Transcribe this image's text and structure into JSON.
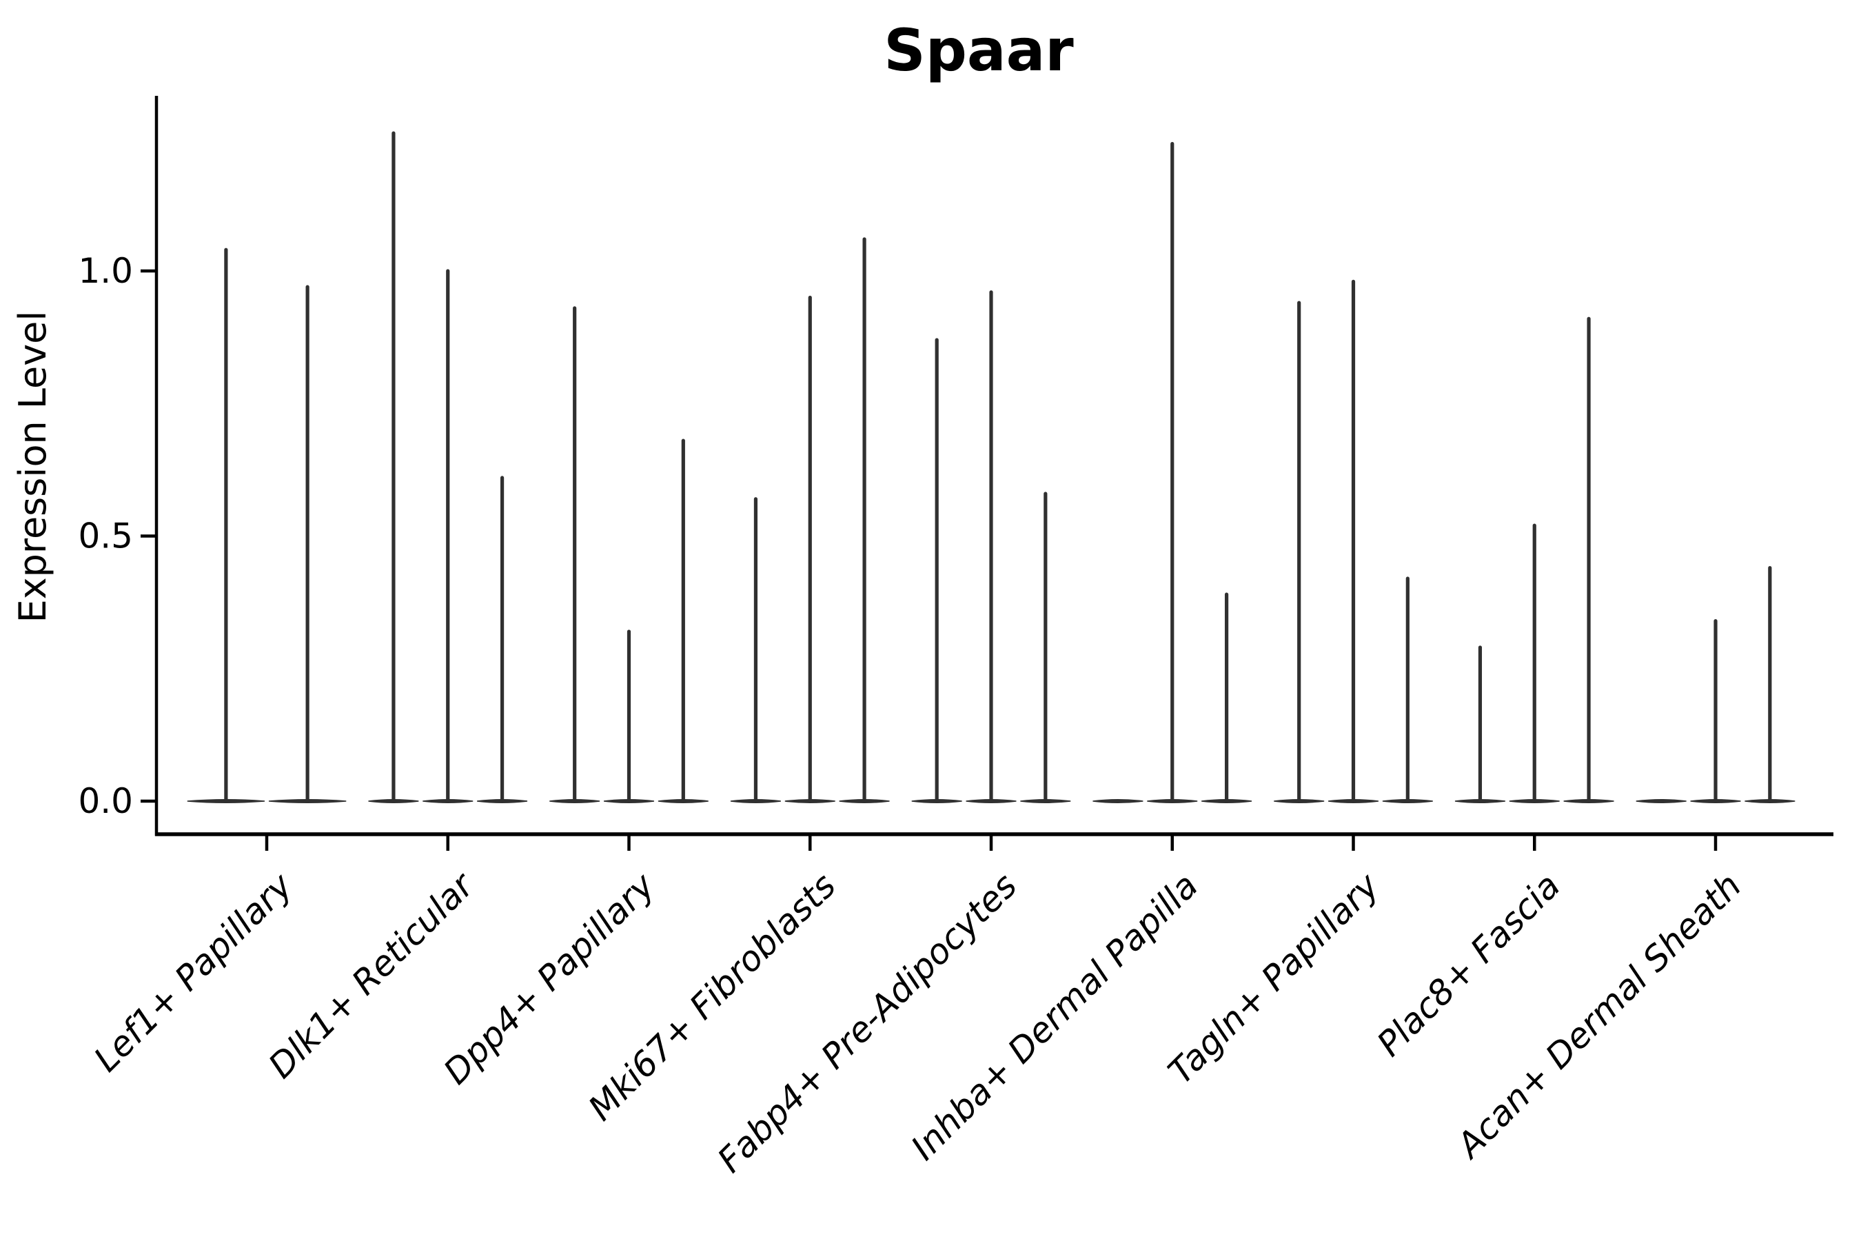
{
  "figure": {
    "title": "Spaar",
    "ylabel": "Expression Level"
  },
  "chart_data": {
    "type": "violin",
    "title": "Spaar",
    "xlabel": "",
    "ylabel": "Expression Level",
    "legend": "none",
    "grid": false,
    "ylim": [
      -0.06,
      1.33
    ],
    "ytick_values": [
      0.0,
      0.5,
      1.0
    ],
    "ytick_labels": [
      "0.0",
      "0.5",
      "1.0"
    ],
    "categories": [
      "Lef1+ Papillary",
      "Dlk1+ Reticular",
      "Dpp4+ Papillary",
      "Mki67+ Fibroblasts",
      "Fabp4+ Pre-Adipocytes",
      "Inhba+ Dermal Papilla",
      "Tagln+ Papillary",
      "Plac8+ Fascia",
      "Acan+ Dermal Sheath"
    ],
    "series": [
      {
        "name": "Lef1+ Papillary",
        "violin_maxima": [
          1.04,
          0.97
        ]
      },
      {
        "name": "Dlk1+ Reticular",
        "violin_maxima": [
          1.26,
          1.0,
          0.61
        ]
      },
      {
        "name": "Dpp4+ Papillary",
        "violin_maxima": [
          0.93,
          0.32,
          0.68
        ]
      },
      {
        "name": "Mki67+ Fibroblasts",
        "violin_maxima": [
          0.57,
          0.95,
          1.06
        ]
      },
      {
        "name": "Fabp4+ Pre-Adipocytes",
        "violin_maxima": [
          0.87,
          0.96,
          0.58
        ]
      },
      {
        "name": "Inhba+ Dermal Papilla",
        "violin_maxima": [
          0.0,
          1.24,
          0.39
        ]
      },
      {
        "name": "Tagln+ Papillary",
        "violin_maxima": [
          0.94,
          0.98,
          0.42
        ]
      },
      {
        "name": "Plac8+ Fascia",
        "violin_maxima": [
          0.29,
          0.52,
          0.91
        ]
      },
      {
        "name": "Acan+ Dermal Sheath",
        "violin_maxima": [
          0.0,
          0.34,
          0.44
        ]
      }
    ],
    "violin_description": "Each category holds thin spike-shaped violins (flat base at 0, vertical spike up to the listed maximum expression value)."
  },
  "colors": {
    "background": "#ffffff",
    "violin_stroke": "#303030",
    "axis": "#000000",
    "text": "#000000"
  }
}
